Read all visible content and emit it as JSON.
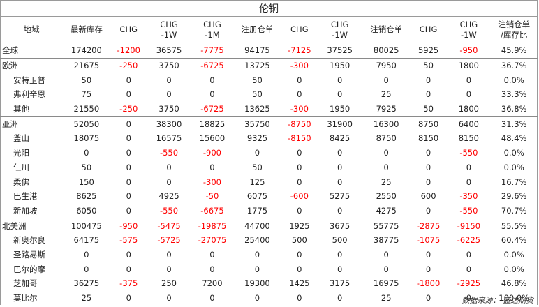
{
  "title": "伦铜",
  "headers": [
    [
      "地域"
    ],
    [
      "最新库存"
    ],
    [
      "CHG"
    ],
    [
      "CHG",
      "-1W"
    ],
    [
      "CHG",
      "-1M"
    ],
    [
      "注册仓单"
    ],
    [
      "CHG"
    ],
    [
      "CHG",
      "-1W"
    ],
    [
      "注销仓单"
    ],
    [
      "CHG"
    ],
    [
      "CHG",
      "-1W"
    ],
    [
      "注销仓单",
      "/库存比"
    ]
  ],
  "rows": [
    {
      "name": "全球",
      "sub": false,
      "group": true,
      "cells": [
        "174200",
        "-1200",
        "36575",
        "-7775",
        "94175",
        "-7125",
        "37525",
        "80025",
        "5925",
        "-950",
        "45.9%"
      ]
    },
    {
      "name": "欧洲",
      "sub": false,
      "group": true,
      "cells": [
        "21675",
        "-250",
        "3750",
        "-6725",
        "13725",
        "-300",
        "1950",
        "7950",
        "50",
        "1800",
        "36.7%"
      ]
    },
    {
      "name": "安特卫普",
      "sub": true,
      "group": false,
      "cells": [
        "50",
        "0",
        "0",
        "0",
        "50",
        "0",
        "0",
        "0",
        "0",
        "0",
        "0.0%"
      ]
    },
    {
      "name": "弗利辛恩",
      "sub": true,
      "group": false,
      "cells": [
        "75",
        "0",
        "0",
        "0",
        "50",
        "0",
        "0",
        "25",
        "0",
        "0",
        "33.3%"
      ]
    },
    {
      "name": "其他",
      "sub": true,
      "group": false,
      "cells": [
        "21550",
        "-250",
        "3750",
        "-6725",
        "13625",
        "-300",
        "1950",
        "7925",
        "50",
        "1800",
        "36.8%"
      ]
    },
    {
      "name": "亚洲",
      "sub": false,
      "group": true,
      "cells": [
        "52050",
        "0",
        "38300",
        "18825",
        "35750",
        "-8750",
        "31900",
        "16300",
        "8750",
        "6400",
        "31.3%"
      ]
    },
    {
      "name": "釜山",
      "sub": true,
      "group": false,
      "cells": [
        "18075",
        "0",
        "16575",
        "15600",
        "9325",
        "-8150",
        "8425",
        "8750",
        "8150",
        "8150",
        "48.4%"
      ]
    },
    {
      "name": "光阳",
      "sub": true,
      "group": false,
      "cells": [
        "0",
        "0",
        "-550",
        "-900",
        "0",
        "0",
        "0",
        "0",
        "0",
        "-550",
        "0.0%"
      ]
    },
    {
      "name": "仁川",
      "sub": true,
      "group": false,
      "cells": [
        "50",
        "0",
        "0",
        "0",
        "50",
        "0",
        "0",
        "0",
        "0",
        "0",
        "0.0%"
      ]
    },
    {
      "name": "柔佛",
      "sub": true,
      "group": false,
      "cells": [
        "150",
        "0",
        "0",
        "-300",
        "125",
        "0",
        "0",
        "25",
        "0",
        "0",
        "16.7%"
      ]
    },
    {
      "name": "巴生港",
      "sub": true,
      "group": false,
      "cells": [
        "8625",
        "0",
        "4925",
        "-50",
        "6075",
        "-600",
        "5275",
        "2550",
        "600",
        "-350",
        "29.6%"
      ]
    },
    {
      "name": "新加坡",
      "sub": true,
      "group": false,
      "cells": [
        "6050",
        "0",
        "-550",
        "-6675",
        "1775",
        "0",
        "0",
        "4275",
        "0",
        "-550",
        "70.7%"
      ]
    },
    {
      "name": "北美洲",
      "sub": false,
      "group": true,
      "cells": [
        "100475",
        "-950",
        "-5475",
        "-19875",
        "44700",
        "1925",
        "3675",
        "55775",
        "-2875",
        "-9150",
        "55.5%"
      ]
    },
    {
      "name": "新奥尔良",
      "sub": true,
      "group": false,
      "cells": [
        "64175",
        "-575",
        "-5725",
        "-27075",
        "25400",
        "500",
        "500",
        "38775",
        "-1075",
        "-6225",
        "60.4%"
      ]
    },
    {
      "name": "圣路易斯",
      "sub": true,
      "group": false,
      "cells": [
        "0",
        "0",
        "0",
        "0",
        "0",
        "0",
        "0",
        "0",
        "0",
        "0",
        "0.0%"
      ]
    },
    {
      "name": "巴尔的摩",
      "sub": true,
      "group": false,
      "cells": [
        "0",
        "0",
        "0",
        "0",
        "0",
        "0",
        "0",
        "0",
        "0",
        "0",
        "0.0%"
      ]
    },
    {
      "name": "芝加哥",
      "sub": true,
      "group": false,
      "cells": [
        "36275",
        "-375",
        "250",
        "7200",
        "19300",
        "1425",
        "3175",
        "16975",
        "-1800",
        "-2925",
        "46.8%"
      ]
    },
    {
      "name": "莫比尔",
      "sub": true,
      "group": false,
      "cells": [
        "25",
        "0",
        "0",
        "0",
        "0",
        "0",
        "0",
        "25",
        "0",
        "0",
        "100.0%"
      ]
    }
  ],
  "source": "数据来源：  盛达期货",
  "colors": {
    "negative": "#ff0000",
    "border": "#8a8a8a"
  }
}
